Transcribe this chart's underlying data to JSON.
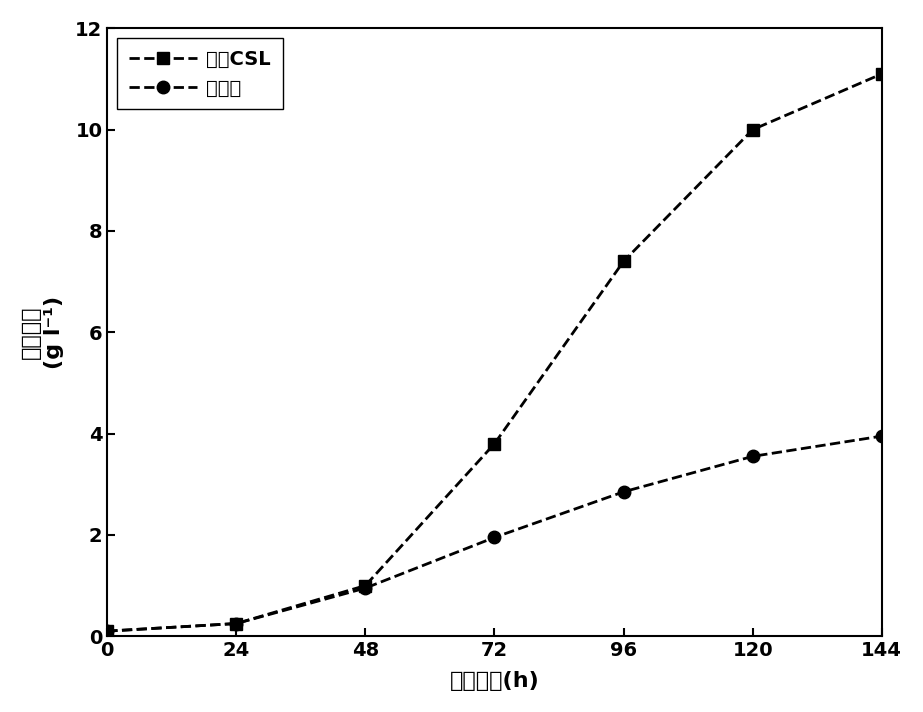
{
  "x": [
    0,
    24,
    48,
    72,
    96,
    120,
    144
  ],
  "csl_y": [
    0.1,
    0.25,
    1.0,
    3.8,
    7.4,
    10.0,
    11.1
  ],
  "ctrl_y": [
    0.1,
    0.25,
    0.95,
    1.95,
    2.85,
    3.55,
    3.95
  ],
  "xlabel": "培养时间(h)",
  "ylabel_main": "细胞密度",
  "ylabel_unit": "(g l⁻¹)",
  "legend_csl": "添加CSL",
  "legend_ctrl": "对照组",
  "xlim": [
    0,
    144
  ],
  "ylim": [
    0,
    12
  ],
  "xticks": [
    0,
    24,
    48,
    72,
    96,
    120,
    144
  ],
  "yticks": [
    0,
    2,
    4,
    6,
    8,
    10,
    12
  ],
  "line_color": "#000000",
  "marker_csl": "s",
  "marker_ctrl": "o",
  "markersize": 9,
  "linewidth": 2.0,
  "legend_fontsize": 14,
  "tick_fontsize": 14,
  "label_fontsize": 16,
  "background_color": "#ffffff"
}
